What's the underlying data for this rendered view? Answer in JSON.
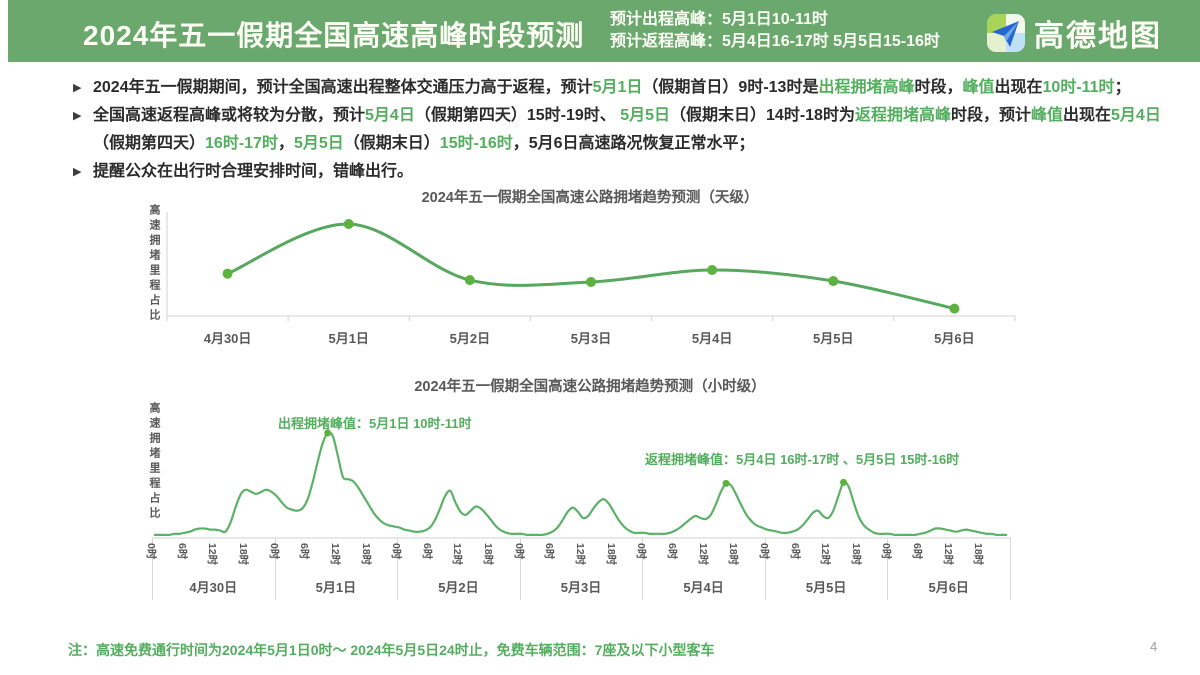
{
  "colors": {
    "header_bg": "#6aa86e",
    "accent_green_text": "#53ae5e",
    "curve_line": "#57a85e",
    "curve_dot": "#5db23f",
    "hourly_line": "#5cb168",
    "axis_gray": "#d9d9d9",
    "label_gray": "#595959"
  },
  "header": {
    "title": "2024年五一假期全国高速高峰时段预测",
    "peak_line1": "预计出程高峰：5月1日10-11时",
    "peak_line2": "预计返程高峰：5月4日16-17时 5月5日15-16时",
    "brand": "高德地图"
  },
  "bullets": [
    {
      "lines": [
        [
          {
            "t": "2024年五一假期期间，预计全国高速出程整体交通压力高于返程，预计",
            "g": false
          },
          {
            "t": "5月1日",
            "g": true
          },
          {
            "t": "（假期首日）9时-13时是",
            "g": false
          },
          {
            "t": "出程拥堵高峰",
            "g": true
          },
          {
            "t": "时段，",
            "g": false
          },
          {
            "t": "峰值",
            "g": true
          },
          {
            "t": "出现在",
            "g": false
          },
          {
            "t": "10时-11时",
            "g": true
          },
          {
            "t": "；",
            "g": false
          }
        ]
      ]
    },
    {
      "lines": [
        [
          {
            "t": "全国高速返程高峰或将较为分散，预计",
            "g": false
          },
          {
            "t": "5月4日",
            "g": true
          },
          {
            "t": "（假期第四天）15时-19时、 ",
            "g": false
          },
          {
            "t": "5月5日",
            "g": true
          },
          {
            "t": "（假期末日）14时-18时为",
            "g": false
          },
          {
            "t": "返程拥堵高峰",
            "g": true
          },
          {
            "t": "时段，预计",
            "g": false
          },
          {
            "t": "峰值",
            "g": true
          },
          {
            "t": "出现在",
            "g": false
          },
          {
            "t": "5月4日",
            "g": true
          }
        ],
        [
          {
            "t": "（假期第四天）",
            "g": false
          },
          {
            "t": "16时-17时",
            "g": true
          },
          {
            "t": "，",
            "g": false
          },
          {
            "t": "5月5日",
            "g": true
          },
          {
            "t": "（假期末日）",
            "g": false
          },
          {
            "t": "15时-16时",
            "g": true
          },
          {
            "t": "，5月6日高速路况恢复正常水平；",
            "g": false
          }
        ]
      ]
    },
    {
      "lines": [
        [
          {
            "t": "提醒公众在出行时合理安排时间，错峰出行。",
            "g": false
          }
        ]
      ]
    }
  ],
  "chart_data": [
    {
      "type": "line",
      "title": "2024年五一假期全国高速公路拥堵趋势预测（天级）",
      "xlabel": "",
      "ylabel": "高速拥堵里程占比",
      "categories": [
        "4月30日",
        "5月1日",
        "5月2日",
        "5月3日",
        "5月4日",
        "5月5日",
        "5月6日"
      ],
      "values": [
        0.46,
        1.0,
        0.39,
        0.37,
        0.5,
        0.38,
        0.08
      ],
      "ylim": [
        0,
        1.1
      ],
      "grid": false,
      "legend": "none"
    },
    {
      "type": "line",
      "title": "2024年五一假期全国高速公路拥堵趋势预测（小时级）",
      "xlabel": "",
      "ylabel": "高速拥堵里程占比",
      "hour_ticks": [
        "0时",
        "6时",
        "12时",
        "18时"
      ],
      "days": [
        "4月30日",
        "5月1日",
        "5月2日",
        "5月3日",
        "5月4日",
        "5月5日",
        "5月6日"
      ],
      "series": [
        {
          "name": "4月30日",
          "values": [
            0.03,
            0.03,
            0.03,
            0.03,
            0.04,
            0.04,
            0.05,
            0.06,
            0.08,
            0.09,
            0.09,
            0.08,
            0.08,
            0.07,
            0.06,
            0.15,
            0.3,
            0.42,
            0.46,
            0.44,
            0.42,
            0.44,
            0.46,
            0.44
          ]
        },
        {
          "name": "5月1日",
          "values": [
            0.4,
            0.34,
            0.29,
            0.27,
            0.26,
            0.28,
            0.36,
            0.52,
            0.72,
            0.9,
            1.0,
            0.97,
            0.78,
            0.58,
            0.56,
            0.54,
            0.48,
            0.4,
            0.32,
            0.24,
            0.18,
            0.14,
            0.12,
            0.11
          ]
        },
        {
          "name": "5月2日",
          "values": [
            0.1,
            0.08,
            0.07,
            0.06,
            0.06,
            0.07,
            0.1,
            0.17,
            0.28,
            0.4,
            0.45,
            0.34,
            0.25,
            0.22,
            0.26,
            0.3,
            0.28,
            0.23,
            0.17,
            0.11,
            0.07,
            0.05,
            0.04,
            0.04
          ]
        },
        {
          "name": "5月3日",
          "values": [
            0.04,
            0.03,
            0.03,
            0.03,
            0.03,
            0.04,
            0.06,
            0.1,
            0.17,
            0.25,
            0.29,
            0.25,
            0.19,
            0.21,
            0.28,
            0.34,
            0.37,
            0.33,
            0.25,
            0.17,
            0.11,
            0.07,
            0.05,
            0.05
          ]
        },
        {
          "name": "5月4日",
          "values": [
            0.05,
            0.04,
            0.04,
            0.04,
            0.04,
            0.05,
            0.07,
            0.1,
            0.14,
            0.18,
            0.21,
            0.19,
            0.18,
            0.22,
            0.32,
            0.44,
            0.52,
            0.5,
            0.41,
            0.31,
            0.22,
            0.16,
            0.12,
            0.1
          ]
        },
        {
          "name": "5月5日",
          "values": [
            0.08,
            0.07,
            0.06,
            0.05,
            0.05,
            0.06,
            0.08,
            0.12,
            0.18,
            0.24,
            0.26,
            0.21,
            0.19,
            0.26,
            0.4,
            0.53,
            0.49,
            0.34,
            0.2,
            0.12,
            0.08,
            0.05,
            0.04,
            0.04
          ]
        },
        {
          "name": "5月6日",
          "values": [
            0.04,
            0.03,
            0.03,
            0.03,
            0.03,
            0.03,
            0.04,
            0.05,
            0.07,
            0.09,
            0.09,
            0.08,
            0.07,
            0.06,
            0.07,
            0.08,
            0.07,
            0.06,
            0.05,
            0.04,
            0.04,
            0.03,
            0.03,
            0.03
          ]
        }
      ],
      "annotations": [
        {
          "text": "出程拥堵峰值：5月1日 10时-11时"
        },
        {
          "text": "返程拥堵峰值：5月4日 16时-17时 、5月5日 15时-16时"
        }
      ],
      "markers": [
        {
          "day_index": 1,
          "hour": 10
        },
        {
          "day_index": 4,
          "hour": 16
        },
        {
          "day_index": 5,
          "hour": 15
        }
      ],
      "ylim": [
        0,
        1.1
      ],
      "grid": false,
      "legend": "none"
    }
  ],
  "footer": {
    "note": "注：高速免费通行时间为2024年5月1日0时～ 2024年5月5日24时止，免费车辆范围：7座及以下小型客车"
  },
  "page_number": "4"
}
